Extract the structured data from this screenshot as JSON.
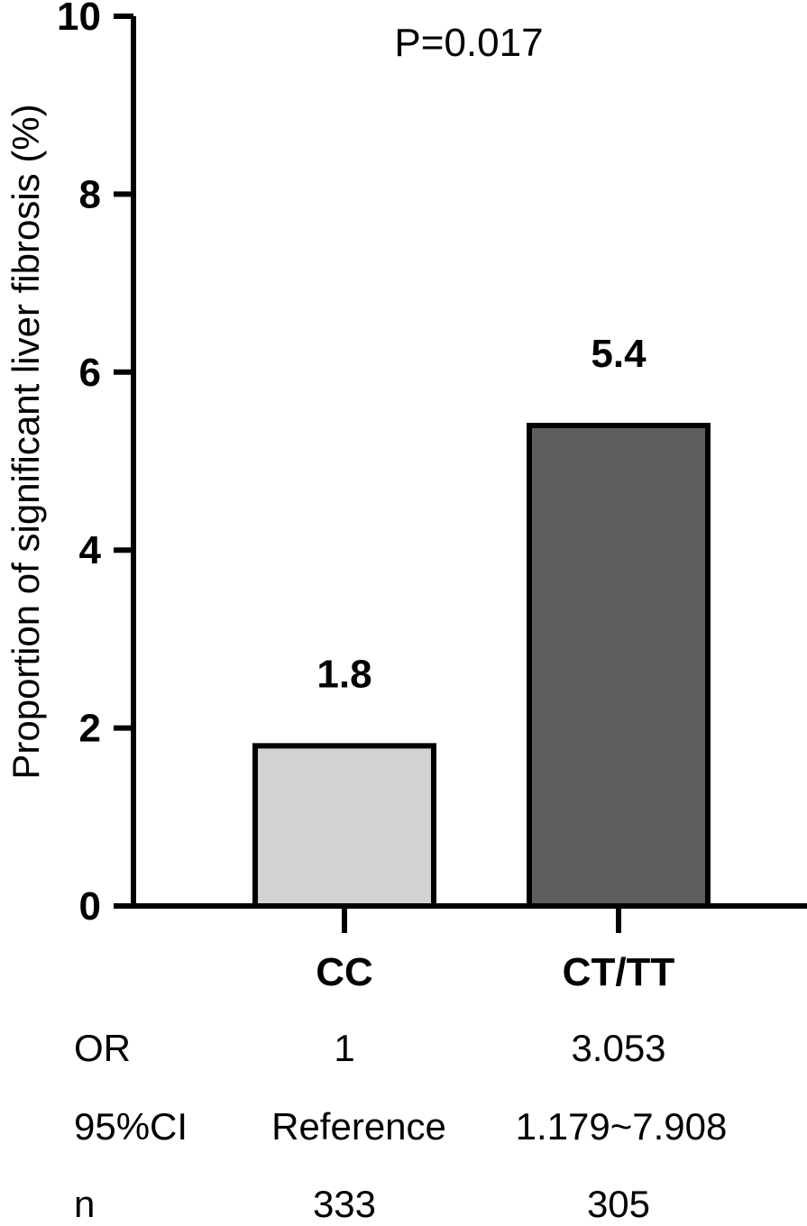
{
  "chart_data": {
    "type": "bar",
    "title": "",
    "xlabel": "",
    "ylabel": "Proportion of significant liver fibrosis (%)",
    "ylim": [
      0,
      10
    ],
    "yticks": [
      0,
      2,
      4,
      6,
      8,
      10
    ],
    "grid": false,
    "legend": "none",
    "categories": [
      "CC",
      "CT/TT"
    ],
    "values": [
      1.8,
      5.4
    ],
    "data_labels": [
      "1.8",
      "5.4"
    ],
    "bar_colors": [
      "#d3d2d3",
      "#5e5e60"
    ],
    "annotation": "P=0.017"
  },
  "stats_table": {
    "rows": [
      {
        "label": "OR",
        "values": [
          "1",
          "3.053"
        ]
      },
      {
        "label": "95%CI",
        "values": [
          "Reference",
          "1.179~7.908"
        ]
      },
      {
        "label": "n",
        "values": [
          "333",
          "305"
        ]
      }
    ]
  }
}
